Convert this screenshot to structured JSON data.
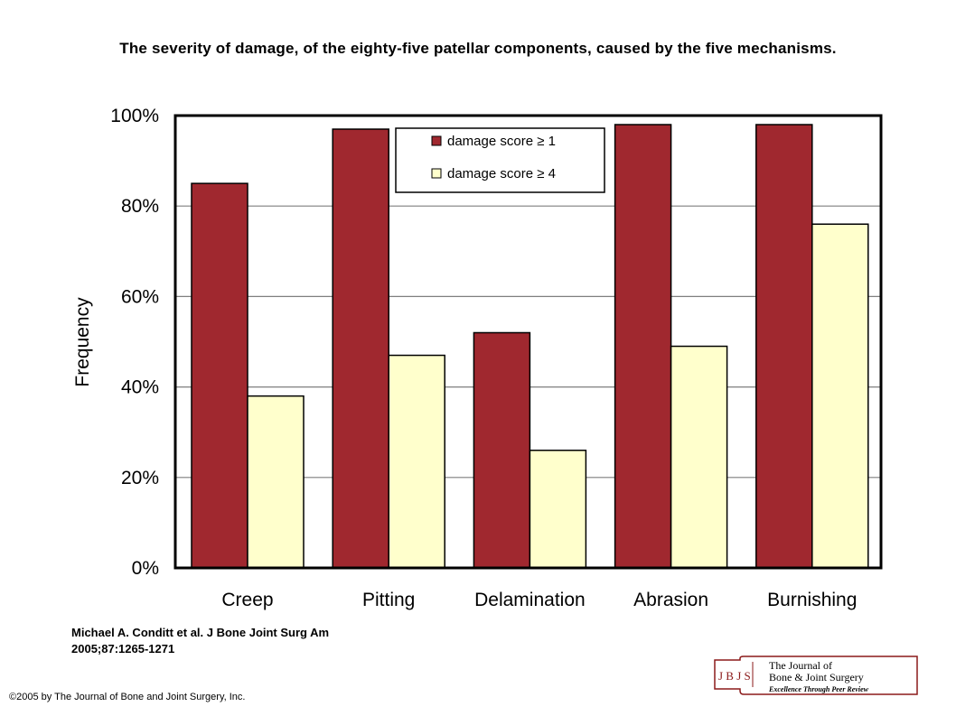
{
  "title": "The severity of damage, of the eighty-five patellar components, caused by the five mechanisms.",
  "citation": {
    "line1": "Michael A. Conditt et al. J Bone Joint Surg Am",
    "line2": "2005;87:1265-1271"
  },
  "copyright": "©2005 by The Journal of Bone and Joint Surgery, Inc.",
  "logo": {
    "mark": "J B J S",
    "line1": "The Journal of",
    "line2": "Bone & Joint Surgery",
    "line3": "Excellence Through Peer Review",
    "color": "#8b1a1a"
  },
  "chart_data": {
    "type": "bar",
    "title": "",
    "xlabel": "",
    "ylabel": "Frequency",
    "categories": [
      "Creep",
      "Pitting",
      "Delamination",
      "Abrasion",
      "Burnishing"
    ],
    "series": [
      {
        "name": "damage score ≥ 1",
        "values": [
          85,
          97,
          52,
          98,
          98
        ],
        "color": "#a0282f"
      },
      {
        "name": "damage score ≥ 4",
        "values": [
          38,
          47,
          26,
          49,
          76
        ],
        "color": "#ffffcc"
      }
    ],
    "ylim": [
      0,
      100
    ],
    "yticks": [
      "0%",
      "20%",
      "40%",
      "60%",
      "80%",
      "100%"
    ],
    "grid": true,
    "legend_position": "top-center"
  }
}
